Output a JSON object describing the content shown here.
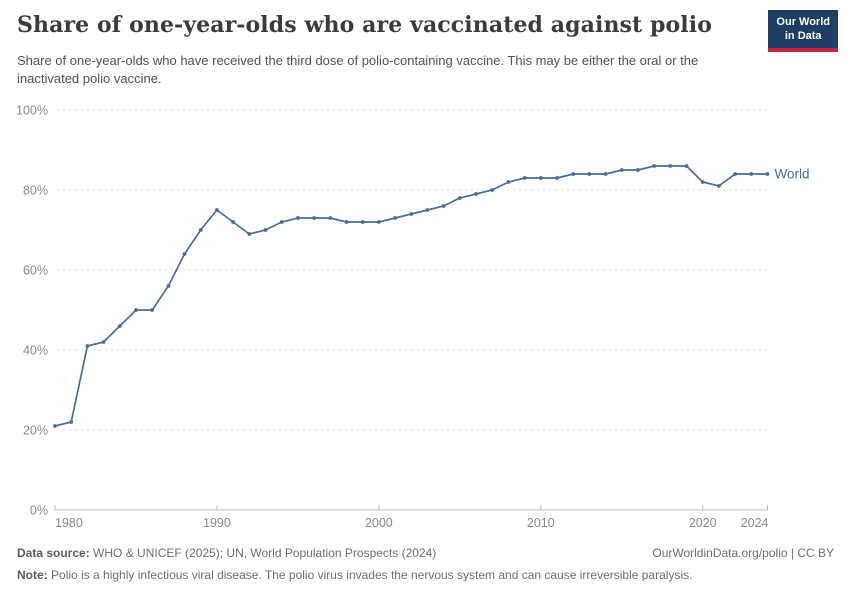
{
  "header": {
    "title": "Share of one-year-olds who are vaccinated against polio",
    "subtitle": "Share of one-year-olds who have received the third dose of polio-containing vaccine. This may be either the oral or the inactivated polio vaccine."
  },
  "logo": {
    "line1": "Our World",
    "line2": "in Data",
    "bg_color": "#1d3d63",
    "accent_color": "#c0293d"
  },
  "footer": {
    "data_source_label": "Data source:",
    "data_source_text": "WHO & UNICEF (2025); UN, World Population Prospects (2024)",
    "attribution": "OurWorldinData.org/polio | CC BY",
    "note_label": "Note:",
    "note_text": "Polio is a highly infectious viral disease. The polio virus invades the nervous system and can cause irreversible paralysis."
  },
  "chart_data": {
    "type": "line",
    "title": "Share of one-year-olds who are vaccinated against polio",
    "xlabel": "",
    "ylabel": "",
    "ylim": [
      0,
      100
    ],
    "xlim": [
      1980,
      2024
    ],
    "grid": "horizontal-dashed",
    "legend_position": "end-of-line",
    "y_ticks": [
      {
        "value": 0,
        "label": "0%"
      },
      {
        "value": 20,
        "label": "20%"
      },
      {
        "value": 40,
        "label": "40%"
      },
      {
        "value": 60,
        "label": "60%"
      },
      {
        "value": 80,
        "label": "80%"
      },
      {
        "value": 100,
        "label": "100%"
      }
    ],
    "x_ticks": [
      {
        "year": 1980,
        "label": "1980"
      },
      {
        "year": 1990,
        "label": "1990"
      },
      {
        "year": 2000,
        "label": "2000"
      },
      {
        "year": 2010,
        "label": "2010"
      },
      {
        "year": 2020,
        "label": "2020"
      },
      {
        "year": 2024,
        "label": "2024"
      }
    ],
    "series": [
      {
        "name": "World",
        "color": "#4c6a9c",
        "x": [
          1980,
          1981,
          1982,
          1983,
          1984,
          1985,
          1986,
          1987,
          1988,
          1989,
          1990,
          1991,
          1992,
          1993,
          1994,
          1995,
          1996,
          1997,
          1998,
          1999,
          2000,
          2001,
          2002,
          2003,
          2004,
          2005,
          2006,
          2007,
          2008,
          2009,
          2010,
          2011,
          2012,
          2013,
          2014,
          2015,
          2016,
          2017,
          2018,
          2019,
          2020,
          2021,
          2022,
          2023,
          2024
        ],
        "values": [
          21,
          22,
          41,
          42,
          46,
          50,
          50,
          56,
          64,
          70,
          75,
          72,
          69,
          70,
          72,
          73,
          73,
          73,
          72,
          72,
          72,
          73,
          74,
          75,
          76,
          78,
          79,
          80,
          82,
          83,
          83,
          83,
          84,
          84,
          84,
          85,
          85,
          86,
          86,
          86,
          82,
          81,
          84,
          84,
          84
        ]
      }
    ]
  }
}
